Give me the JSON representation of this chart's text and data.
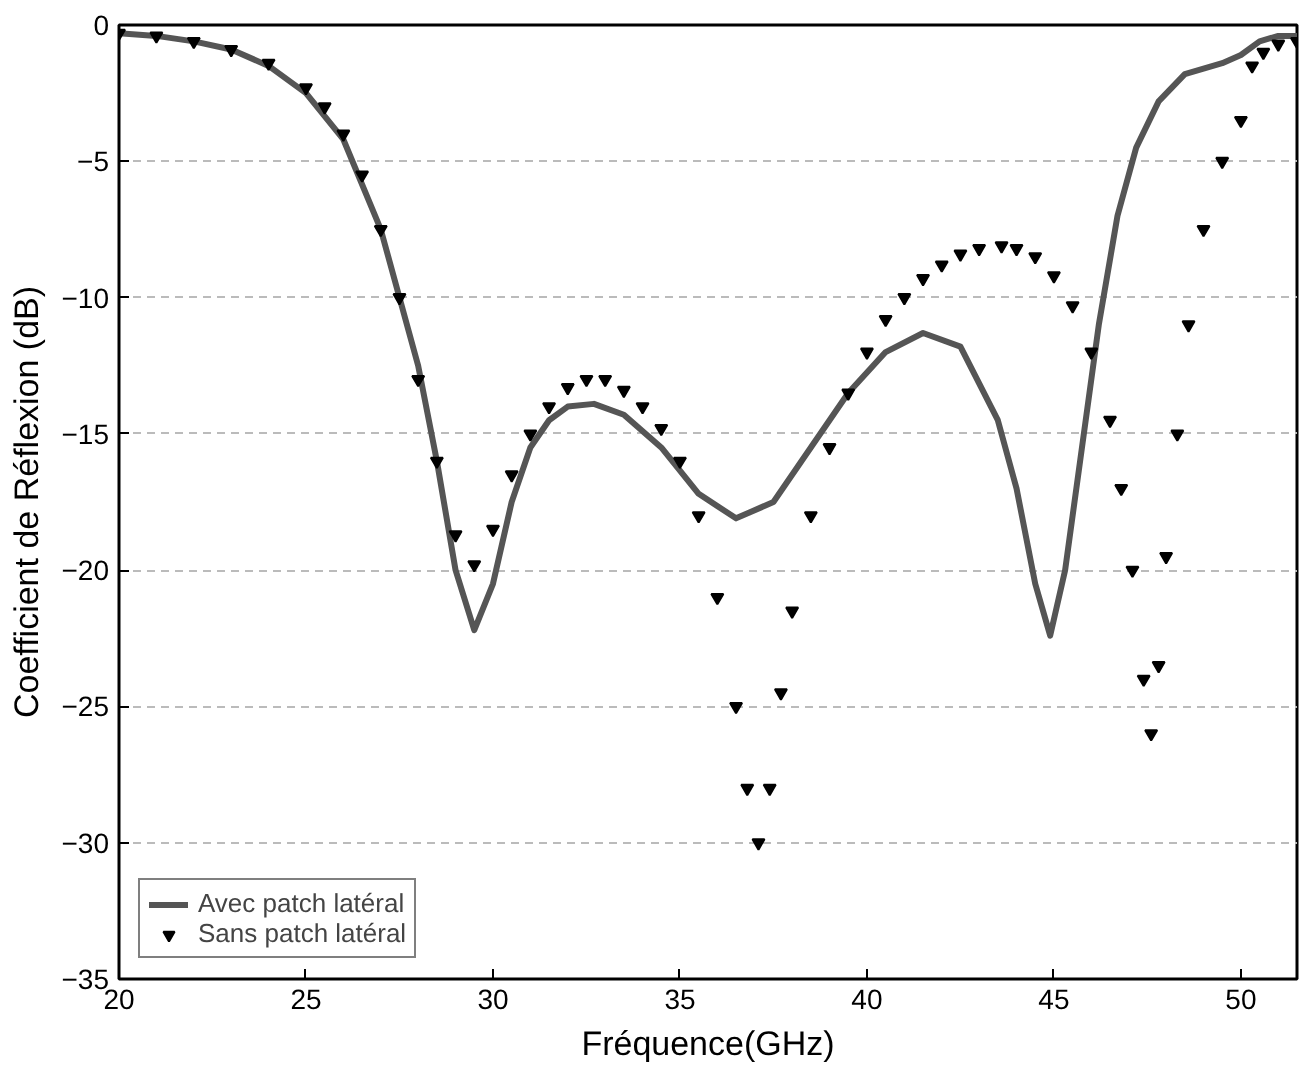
{
  "chart_data": {
    "type": "line",
    "xlabel": "Fréquence(GHz)",
    "ylabel": "Coefficient de Réflexion (dB)",
    "xlim": [
      20,
      51.5
    ],
    "xticks": [
      20,
      25,
      30,
      35,
      40,
      45,
      50
    ],
    "ylim": [
      -35,
      0
    ],
    "yticks": [
      -35,
      -30,
      -25,
      -20,
      -15,
      -10,
      -5,
      0
    ],
    "grid": "y",
    "legend": "bottom left",
    "series": [
      {
        "name": "Avec patch latéral",
        "color": "#555555",
        "line_style": "solid",
        "x": [
          20,
          21,
          22,
          23,
          24,
          25,
          26,
          27,
          28,
          28.5,
          29,
          29.5,
          30,
          30.5,
          31,
          31.5,
          32,
          32.7,
          33.5,
          34.5,
          35.5,
          36.5,
          37.5,
          38.5,
          39.5,
          40.5,
          41.5,
          42.5,
          43.5,
          44,
          44.5,
          44.9,
          45.3,
          45.7,
          46.2,
          46.7,
          47.2,
          47.8,
          48.5,
          49.5,
          50,
          50.5,
          51,
          51.5
        ],
        "values": [
          -0.3,
          -0.4,
          -0.6,
          -0.9,
          -1.5,
          -2.5,
          -4.2,
          -7.5,
          -12.5,
          -16,
          -20,
          -22.2,
          -20.5,
          -17.5,
          -15.5,
          -14.5,
          -14.0,
          -13.9,
          -14.3,
          -15.5,
          -17.2,
          -18.1,
          -17.5,
          -15.5,
          -13.5,
          -12,
          -11.3,
          -11.8,
          -14.5,
          -17,
          -20.5,
          -22.4,
          -20,
          -16,
          -11,
          -7,
          -4.5,
          -2.8,
          -1.8,
          -1.4,
          -1.1,
          -0.6,
          -0.4,
          -0.4
        ]
      },
      {
        "name": "Sans patch latéral",
        "type": "scatter",
        "marker": "triangle",
        "color": "#000000",
        "x": [
          20,
          21,
          22,
          23,
          24,
          25,
          25.5,
          26,
          26.5,
          27,
          27.5,
          28,
          28.5,
          29,
          29.5,
          30,
          30.5,
          31,
          31.5,
          32,
          32.5,
          33,
          33.5,
          34,
          34.5,
          35,
          35.5,
          36,
          36.5,
          36.8,
          37.1,
          37.4,
          37.7,
          38,
          38.5,
          39,
          39.5,
          40,
          40.5,
          41,
          41.5,
          42,
          42.5,
          43,
          43.6,
          44,
          44.5,
          45,
          45.5,
          46,
          46.5,
          46.8,
          47.1,
          47.4,
          47.6,
          47.8,
          48,
          48.3,
          48.6,
          49,
          49.5,
          50,
          50.3,
          50.6,
          51,
          51.5
        ],
        "values": [
          -0.3,
          -0.4,
          -0.6,
          -0.9,
          -1.4,
          -2.3,
          -3,
          -4,
          -5.5,
          -7.5,
          -10,
          -13,
          -16,
          -18.7,
          -19.8,
          -18.5,
          -16.5,
          -15,
          -14,
          -13.3,
          -13.0,
          -13.0,
          -13.4,
          -14,
          -14.8,
          -16,
          -18,
          -21,
          -25,
          -28,
          -30,
          -28,
          -24.5,
          -21.5,
          -18,
          -15.5,
          -13.5,
          -12,
          -10.8,
          -10,
          -9.3,
          -8.8,
          -8.4,
          -8.2,
          -8.1,
          -8.2,
          -8.5,
          -9.2,
          -10.3,
          -12,
          -14.5,
          -17,
          -20,
          -24,
          -26,
          -23.5,
          -19.5,
          -15,
          -11,
          -7.5,
          -5,
          -3.5,
          -1.5,
          -1.0,
          -0.7,
          -0.6
        ]
      }
    ]
  }
}
